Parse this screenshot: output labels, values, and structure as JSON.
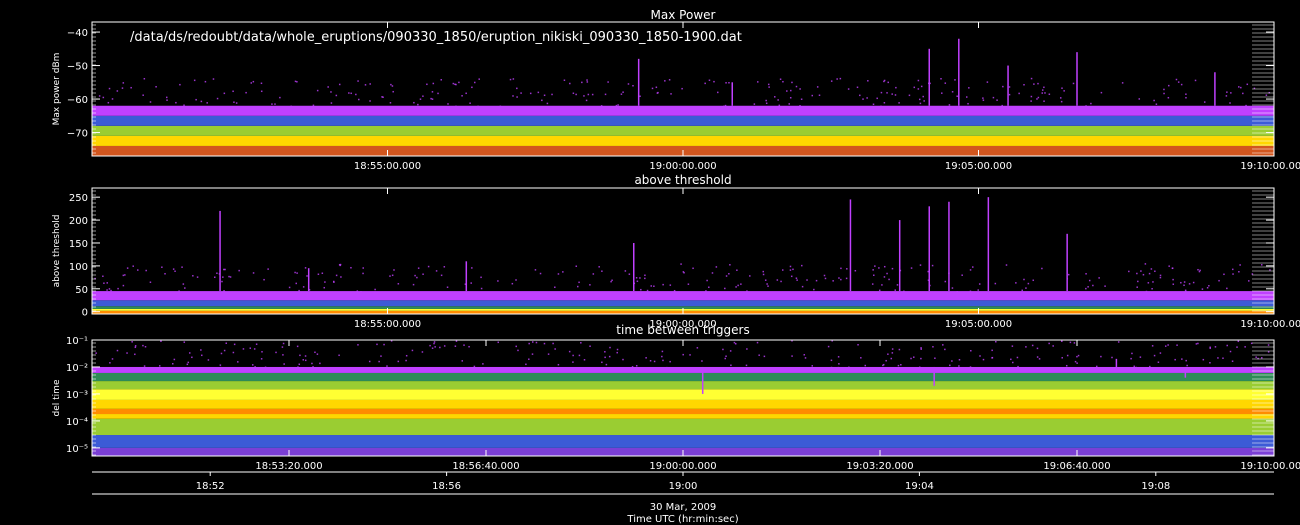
{
  "file_path": "/data/ds/redoubt/data/whole_eruptions/090330_1850/eruption_nikiski_090330_1850-1900.dat",
  "date_label": "30 Mar, 2009",
  "xaxis_title": "Time UTC (hr:min:sec)",
  "colors": {
    "background": "#000000",
    "axes": "#ffffff",
    "palette": [
      "#8b1a1a",
      "#d2561e",
      "#ff8c00",
      "#ffd700",
      "#ffff33",
      "#9acd32",
      "#2e8b57",
      "#3c5bd6",
      "#7b3fd6",
      "#c040ff"
    ]
  },
  "chart_data": [
    {
      "type": "heatmap",
      "title": "Max Power",
      "ylabel": "Max power dBm",
      "ylim": [
        -77,
        -37
      ],
      "yticks": [
        -40,
        -50,
        -60,
        -70
      ],
      "ytick_labels": [
        "−40",
        "−50",
        "−60",
        "−70"
      ],
      "xlim": [
        "18:50:00",
        "19:10:00"
      ],
      "xticks": [
        "18:55:00",
        "19:00:00",
        "19:05:00",
        "19:10:00"
      ],
      "xtick_labels": [
        "18:55:00.000",
        "19:00:00.000",
        "19:05:00.000",
        "19:10:00.000"
      ],
      "bands": [
        {
          "y": [
            -77,
            -74
          ],
          "color": "#d2561e"
        },
        {
          "y": [
            -74,
            -71
          ],
          "color": "#ffd700"
        },
        {
          "y": [
            -71,
            -68
          ],
          "color": "#9acd32"
        },
        {
          "y": [
            -68,
            -65
          ],
          "color": "#3c5bd6"
        },
        {
          "y": [
            -65,
            -62
          ],
          "color": "#c040ff"
        }
      ],
      "spikes": [
        {
          "t": "18:59:15",
          "ymax": -48
        },
        {
          "t": "19:00:50",
          "ymax": -55
        },
        {
          "t": "19:04:10",
          "ymax": -45
        },
        {
          "t": "19:04:40",
          "ymax": -42
        },
        {
          "t": "19:05:30",
          "ymax": -50
        },
        {
          "t": "19:06:40",
          "ymax": -46
        },
        {
          "t": "19:09:00",
          "ymax": -52
        }
      ]
    },
    {
      "type": "heatmap",
      "title": "above threshold",
      "ylabel": "above threshold",
      "ylim": [
        -5,
        270
      ],
      "yticks": [
        0,
        50,
        100,
        150,
        200,
        250
      ],
      "ytick_labels": [
        "0",
        "50",
        "100",
        "150",
        "200",
        "250"
      ],
      "xlim": [
        "18:50:00",
        "19:10:00"
      ],
      "xticks": [
        "18:55:00",
        "19:00:00",
        "19:05:00",
        "19:10:00"
      ],
      "xtick_labels": [
        "18:55:00.000",
        "19:00:00.000",
        "19:05:00.000",
        "19:10:00.000"
      ],
      "bands": [
        {
          "y": [
            -5,
            2
          ],
          "color": "#ff8c00"
        },
        {
          "y": [
            2,
            6
          ],
          "color": "#ffff33"
        },
        {
          "y": [
            6,
            12
          ],
          "color": "#2e8b57"
        },
        {
          "y": [
            12,
            25
          ],
          "color": "#3c5bd6"
        },
        {
          "y": [
            25,
            45
          ],
          "color": "#c040ff"
        }
      ],
      "spikes": [
        {
          "t": "18:52:10",
          "ymax": 220
        },
        {
          "t": "18:53:40",
          "ymax": 95
        },
        {
          "t": "18:56:20",
          "ymax": 110
        },
        {
          "t": "18:59:10",
          "ymax": 150
        },
        {
          "t": "19:02:50",
          "ymax": 245
        },
        {
          "t": "19:03:40",
          "ymax": 200
        },
        {
          "t": "19:04:10",
          "ymax": 230
        },
        {
          "t": "19:04:30",
          "ymax": 240
        },
        {
          "t": "19:05:10",
          "ymax": 250
        },
        {
          "t": "19:06:30",
          "ymax": 170
        }
      ]
    },
    {
      "type": "heatmap",
      "title": "time between triggers",
      "ylabel": "del time",
      "yscale": "log",
      "ylim": [
        5e-06,
        0.1
      ],
      "yticks": [
        0.1,
        0.01,
        0.001,
        0.0001,
        1e-05,
        1e-06
      ],
      "ytick_labels": [
        "10⁻¹",
        "10⁻²",
        "10⁻³",
        "10⁻⁴",
        "10⁻⁵",
        "10⁻⁶"
      ],
      "xlim": [
        "18:50:00",
        "19:10:00"
      ],
      "xticks": [
        "18:53:20",
        "18:56:40",
        "19:00:00",
        "19:03:20",
        "19:06:40",
        "19:10:00"
      ],
      "xtick_labels": [
        "18:53:20.000",
        "18:56:40.000",
        "19:00:00.000",
        "19:03:20.000",
        "19:06:40.000",
        "19:10:00.000"
      ],
      "minor_xtick_labels": [
        "18:52",
        "18:56",
        "19:00",
        "19:04",
        "19:08"
      ],
      "minor_xticks": [
        "18:52:00",
        "18:56:00",
        "19:00:00",
        "19:04:00",
        "19:08:00"
      ],
      "bands": [
        {
          "y": [
            2e-06,
            1e-05
          ],
          "color": "#7b3fd6"
        },
        {
          "y": [
            1e-05,
            3e-05
          ],
          "color": "#3c5bd6"
        },
        {
          "y": [
            3e-05,
            0.00012
          ],
          "color": "#9acd32"
        },
        {
          "y": [
            0.00012,
            0.00018
          ],
          "color": "#ffd700"
        },
        {
          "y": [
            0.00018,
            0.00028
          ],
          "color": "#ff8c00"
        },
        {
          "y": [
            0.00028,
            0.0006
          ],
          "color": "#ffd700"
        },
        {
          "y": [
            0.0006,
            0.0015
          ],
          "color": "#ffff33"
        },
        {
          "y": [
            0.0015,
            0.003
          ],
          "color": "#9acd32"
        },
        {
          "y": [
            0.003,
            0.006
          ],
          "color": "#2e8b57"
        },
        {
          "y": [
            0.006,
            0.01
          ],
          "color": "#c040ff"
        }
      ],
      "spikes": [
        {
          "t": "19:00:20",
          "ymax": 0.001
        },
        {
          "t": "19:04:15",
          "ymax": 0.002
        },
        {
          "t": "19:07:20",
          "ymax": 0.02
        },
        {
          "t": "19:08:30",
          "ymax": 0.004
        }
      ]
    }
  ]
}
